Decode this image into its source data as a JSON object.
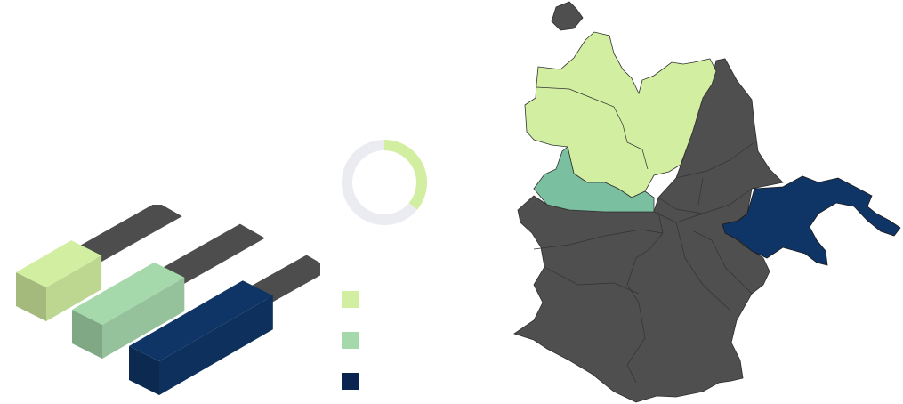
{
  "colors": {
    "light_green": "#d2eea0",
    "mid_green": "#a5d8ab",
    "teal_green": "#7abf9f",
    "navy": "#0f3566",
    "dark_navy": "#0a2451",
    "shadow_gray": "#4d4d4d",
    "map_gray": "#4f4f4f",
    "ring_gray": "#ebebf2"
  },
  "chart_data": [
    {
      "type": "bar",
      "categories": [
        "",
        "",
        ""
      ],
      "series": [
        {
          "values": [
            0.35,
            0.52,
            0.72
          ]
        }
      ],
      "ylim": [
        0,
        1
      ],
      "grid": false,
      "legend": "none"
    },
    {
      "type": "pie",
      "values": [
        0.36,
        0.64
      ],
      "slice_colors": [
        "#d2eea0",
        "#ebebf2"
      ],
      "donut": true
    }
  ],
  "legend": {
    "swatches": [
      {
        "color": "#d2eea0",
        "label": ""
      },
      {
        "color": "#a5d8ab",
        "label": ""
      },
      {
        "color": "#0a2451",
        "label": ""
      }
    ]
  },
  "map": {
    "regions": [
      {
        "name": "",
        "fill": "#d2eea0"
      },
      {
        "name": "",
        "fill": "#7abf9f"
      },
      {
        "name": "",
        "fill": "#0f3566"
      },
      {
        "name": "",
        "fill": "#4f4f4f"
      }
    ]
  }
}
